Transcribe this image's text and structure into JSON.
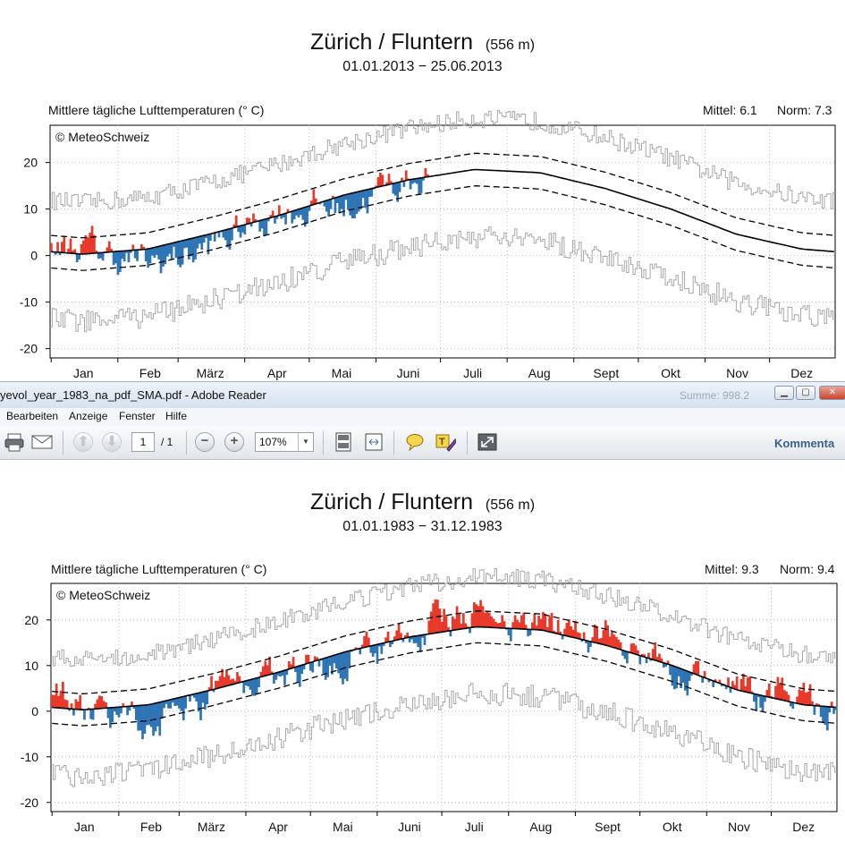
{
  "adobe": {
    "window_title": "yevol_year_1983_na_pdf_SMA.pdf - Adobe Reader",
    "ghost_text": "Summe: 998.2",
    "menu": [
      "Bearbeiten",
      "Anzeige",
      "Fenster",
      "Hilfe"
    ],
    "page_current": "1",
    "page_total": "/ 1",
    "zoom": "107%",
    "comment_label": "Kommenta"
  },
  "charts": [
    {
      "title": "Zürich / Fluntern",
      "elevation": "(556 m)",
      "period": "01.01.2013 − 25.06.2013",
      "subtitle_left": "Mittlere tägliche Lufttemperaturen (° C)",
      "mittel": "Mittel: 6.1",
      "norm": "Norm: 7.3",
      "copyright": "© MeteoSchweiz",
      "months": [
        "Jan",
        "Feb",
        "März",
        "Apr",
        "Mai",
        "Juni",
        "Juli",
        "Aug",
        "Sept",
        "Okt",
        "Nov",
        "Dez"
      ],
      "yticks": [
        20,
        10,
        0,
        -10,
        -20
      ],
      "end_day": 176
    },
    {
      "title": "Zürich / Fluntern",
      "elevation": "(556 m)",
      "period": "01.01.1983 − 31.12.1983",
      "subtitle_left": "Mittlere tägliche Lufttemperaturen (° C)",
      "mittel": "Mittel: 9.3",
      "norm": "Norm: 9.4",
      "copyright": "© MeteoSchweiz",
      "months": [
        "Jan",
        "Feb",
        "März",
        "Apr",
        "Mai",
        "Juni",
        "Juli",
        "Aug",
        "Sept",
        "Okt",
        "Nov",
        "Dez"
      ],
      "yticks": [
        20,
        10,
        0,
        -10,
        -20
      ],
      "end_day": 365
    }
  ],
  "chart_data": [
    {
      "type": "bar",
      "title": "Zürich / Fluntern",
      "ylabel": "Mittlere tägliche Lufttemperaturen (° C)",
      "ylim": [
        -22,
        28
      ],
      "xlim_days": [
        1,
        365
      ],
      "categories": [
        "Jan",
        "Feb",
        "März",
        "Apr",
        "Mai",
        "Juni",
        "Juli",
        "Aug",
        "Sept",
        "Okt",
        "Nov",
        "Dez"
      ],
      "norm_curve_monthly": [
        0.3,
        1.4,
        4.8,
        8.6,
        13.0,
        16.3,
        18.5,
        17.8,
        14.4,
        10.0,
        4.6,
        1.4
      ],
      "anomaly_monthly_approx": [
        1.5,
        -3.5,
        -3.0,
        1.5,
        -2.5,
        0.5
      ],
      "grid": true,
      "colors": {
        "above": "#e8392a",
        "below": "#2f75b5",
        "norm": "#000000",
        "band": "#000000",
        "extremes": "#a8a8a8"
      }
    },
    {
      "type": "bar",
      "title": "Zürich / Fluntern",
      "ylabel": "Mittlere tägliche Lufttemperaturen (° C)",
      "ylim": [
        -22,
        28
      ],
      "xlim_days": [
        1,
        365
      ],
      "categories": [
        "Jan",
        "Feb",
        "März",
        "Apr",
        "Mai",
        "Juni",
        "Juli",
        "Aug",
        "Sept",
        "Okt",
        "Nov",
        "Dez"
      ],
      "norm_curve_monthly": [
        0.3,
        1.4,
        4.8,
        8.6,
        13.0,
        16.3,
        18.5,
        17.8,
        14.4,
        10.0,
        4.6,
        1.4
      ],
      "anomaly_monthly_approx": [
        2.0,
        -3.5,
        -0.5,
        1.0,
        -1.5,
        1.0,
        4.5,
        1.0,
        1.5,
        -0.5,
        -1.5,
        0.5
      ],
      "grid": true,
      "colors": {
        "above": "#e8392a",
        "below": "#2f75b5",
        "norm": "#000000",
        "band": "#000000",
        "extremes": "#a8a8a8"
      }
    }
  ]
}
